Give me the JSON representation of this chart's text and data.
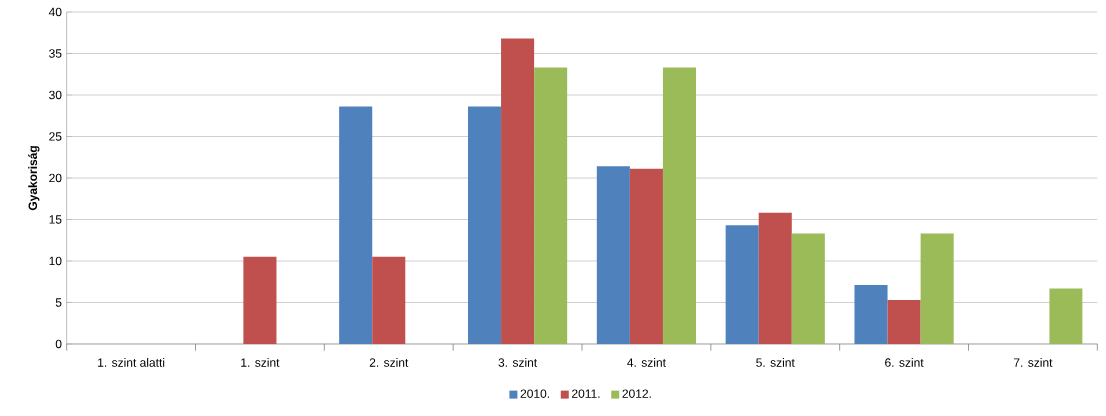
{
  "chart_data": {
    "type": "bar",
    "ylabel": "**Gyakoriság**",
    "categories": [
      "1. szint alatti",
      "1. szint",
      "2. szint",
      "3. szint",
      "4. szint",
      "5. szint",
      "6. szint",
      "7. szint"
    ],
    "series": [
      {
        "name": "2010.",
        "color": "#4f81bd",
        "values": [
          0,
          0,
          28.6,
          28.6,
          21.4,
          14.3,
          7.1,
          0
        ]
      },
      {
        "name": "2011.",
        "color": "#c0504d",
        "values": [
          0,
          10.5,
          10.5,
          36.8,
          21.1,
          15.8,
          5.3,
          0
        ]
      },
      {
        "name": "2012.",
        "color": "#9bbb59",
        "values": [
          0,
          0,
          0,
          33.3,
          33.3,
          13.3,
          13.3,
          6.7
        ]
      }
    ],
    "ylim": [
      0,
      40
    ],
    "yticks": [
      0,
      5,
      10,
      15,
      20,
      25,
      30,
      35,
      40
    ],
    "grid": "y",
    "legend": "bottom"
  }
}
